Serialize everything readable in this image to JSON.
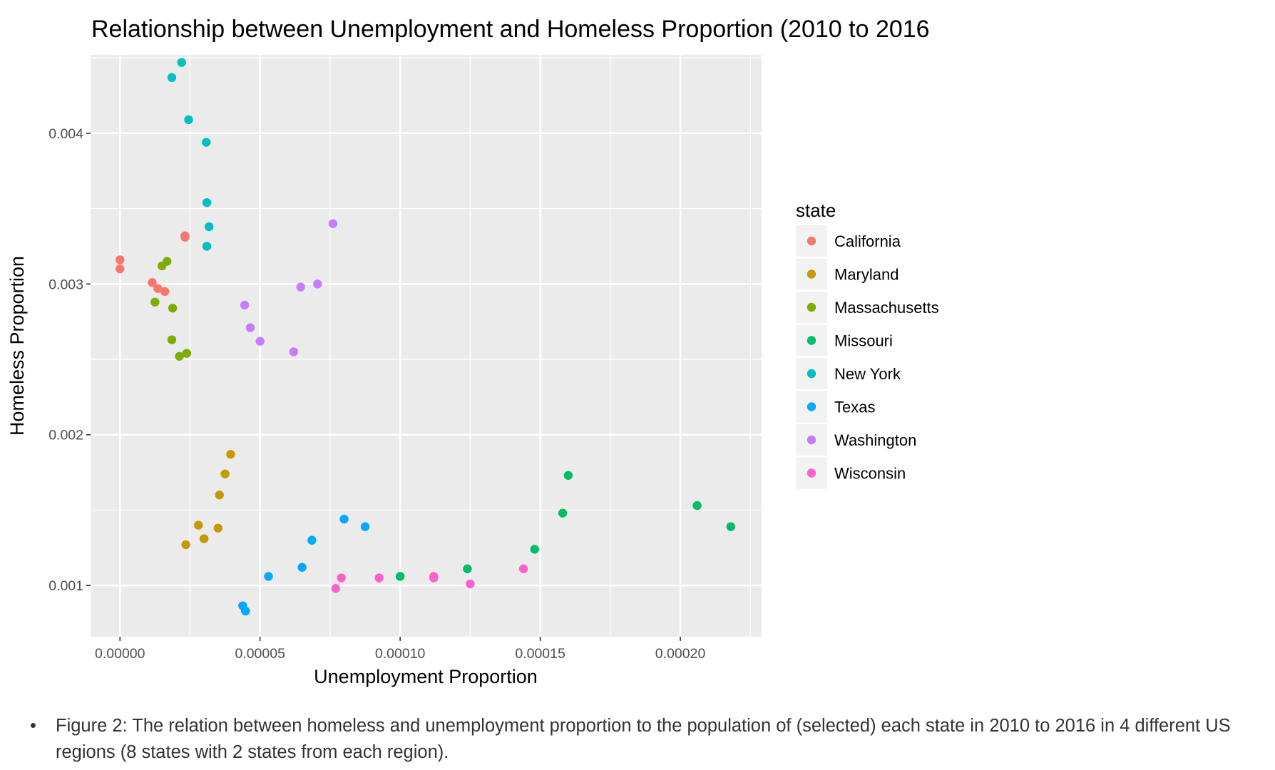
{
  "chart_data": {
    "type": "scatter",
    "title": "Relationship between Unemployment and Homeless Proportion (2010 to 2016",
    "xlabel": "Unemployment Proportion",
    "ylabel": "Homeless Proportion",
    "xlim": [
      -1.05e-05,
      0.000229
    ],
    "ylim": [
      0.00066,
      0.00452
    ],
    "x_ticks": [
      0,
      5e-05,
      0.0001,
      0.00015,
      0.0002
    ],
    "x_tick_labels": [
      "0.00000",
      "0.00005",
      "0.00010",
      "0.00015",
      "0.00020"
    ],
    "y_ticks": [
      0.001,
      0.002,
      0.003,
      0.004
    ],
    "y_tick_labels": [
      "0.001",
      "0.002",
      "0.003",
      "0.004"
    ],
    "grid": true,
    "legend": {
      "title": "state",
      "position": "right"
    },
    "series": [
      {
        "name": "California",
        "color": "#F8766D",
        "points": [
          [
            0.0,
            0.00316
          ],
          [
            0.0,
            0.0031
          ],
          [
            1.15e-05,
            0.00301
          ],
          [
            1.35e-05,
            0.00297
          ],
          [
            1.6e-05,
            0.00295
          ],
          [
            2.32e-05,
            0.00332
          ],
          [
            2.32e-05,
            0.00331
          ]
        ]
      },
      {
        "name": "Maryland",
        "color": "#C49A00",
        "points": [
          [
            3.95e-05,
            0.00187
          ],
          [
            3.75e-05,
            0.00174
          ],
          [
            3.55e-05,
            0.0016
          ],
          [
            2.8e-05,
            0.0014
          ],
          [
            3.5e-05,
            0.00138
          ],
          [
            3e-05,
            0.00131
          ],
          [
            2.35e-05,
            0.00127
          ]
        ]
      },
      {
        "name": "Massachusetts",
        "color": "#7CAE00",
        "points": [
          [
            1.68e-05,
            0.00315
          ],
          [
            1.5e-05,
            0.00312
          ],
          [
            1.25e-05,
            0.00288
          ],
          [
            1.88e-05,
            0.00284
          ],
          [
            1.85e-05,
            0.00263
          ],
          [
            2.38e-05,
            0.00254
          ],
          [
            2.12e-05,
            0.00252
          ]
        ]
      },
      {
        "name": "Missouri",
        "color": "#00BE67",
        "points": [
          [
            0.00016,
            0.00173
          ],
          [
            0.000206,
            0.00153
          ],
          [
            0.000158,
            0.00148
          ],
          [
            0.000218,
            0.00139
          ],
          [
            0.000148,
            0.00124
          ],
          [
            0.000124,
            0.00111
          ],
          [
            0.0001,
            0.00106
          ]
        ]
      },
      {
        "name": "New York",
        "color": "#00BFC4",
        "points": [
          [
            2.2e-05,
            0.00447
          ],
          [
            1.85e-05,
            0.00437
          ],
          [
            2.45e-05,
            0.00409
          ],
          [
            3.08e-05,
            0.00394
          ],
          [
            3.1e-05,
            0.00354
          ],
          [
            3.18e-05,
            0.00338
          ],
          [
            3.1e-05,
            0.00325
          ]
        ]
      },
      {
        "name": "Texas",
        "color": "#00A9FF",
        "points": [
          [
            8e-05,
            0.00144
          ],
          [
            8.75e-05,
            0.00139
          ],
          [
            6.85e-05,
            0.0013
          ],
          [
            6.5e-05,
            0.00112
          ],
          [
            5.3e-05,
            0.00106
          ],
          [
            4.38e-05,
            0.000865
          ],
          [
            4.48e-05,
            0.00083
          ]
        ]
      },
      {
        "name": "Washington",
        "color": "#C77CFF",
        "points": [
          [
            7.6e-05,
            0.0034
          ],
          [
            7.05e-05,
            0.003
          ],
          [
            6.45e-05,
            0.00298
          ],
          [
            4.45e-05,
            0.00286
          ],
          [
            4.65e-05,
            0.00271
          ],
          [
            5e-05,
            0.00262
          ],
          [
            6.2e-05,
            0.00255
          ]
        ]
      },
      {
        "name": "Wisconsin",
        "color": "#FF61CC",
        "points": [
          [
            0.000144,
            0.00111
          ],
          [
            0.000112,
            0.00106
          ],
          [
            0.000112,
            0.00105
          ],
          [
            9.25e-05,
            0.00105
          ],
          [
            7.9e-05,
            0.00105
          ],
          [
            0.000125,
            0.00101
          ],
          [
            7.7e-05,
            0.00098
          ]
        ]
      }
    ]
  },
  "caption": {
    "bullet": "•",
    "text": "Figure 2: The relation between homeless and unemployment proportion to the population of (selected) each state in 2010 to 2016 in 4 different US regions (8 states with 2 states from each region)."
  },
  "colors": {
    "panel_background": "#EBEBEB",
    "grid_line": "#FFFFFF",
    "legend_key_background": "#F2F2F2",
    "tick_label": "#4D4D4D"
  }
}
